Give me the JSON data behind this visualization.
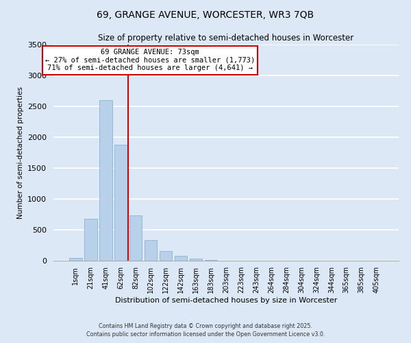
{
  "title": "69, GRANGE AVENUE, WORCESTER, WR3 7QB",
  "subtitle": "Size of property relative to semi-detached houses in Worcester",
  "xlabel": "Distribution of semi-detached houses by size in Worcester",
  "ylabel": "Number of semi-detached properties",
  "bar_labels": [
    "1sqm",
    "21sqm",
    "41sqm",
    "62sqm",
    "82sqm",
    "102sqm",
    "122sqm",
    "142sqm",
    "163sqm",
    "183sqm",
    "203sqm",
    "223sqm",
    "243sqm",
    "264sqm",
    "284sqm",
    "304sqm",
    "324sqm",
    "344sqm",
    "365sqm",
    "385sqm",
    "405sqm"
  ],
  "bar_values": [
    50,
    680,
    2600,
    1880,
    730,
    330,
    155,
    80,
    35,
    8,
    2,
    0,
    0,
    0,
    0,
    0,
    0,
    0,
    0,
    0,
    0
  ],
  "bar_color": "#b8d0ea",
  "bar_edge_color": "#90b8d8",
  "background_color": "#dce8f5",
  "grid_color": "#ffffff",
  "ylim": [
    0,
    3500
  ],
  "yticks": [
    0,
    500,
    1000,
    1500,
    2000,
    2500,
    3000,
    3500
  ],
  "property_line_color": "#cc0000",
  "annotation_title": "69 GRANGE AVENUE: 73sqm",
  "annotation_line1": "← 27% of semi-detached houses are smaller (1,773)",
  "annotation_line2": "71% of semi-detached houses are larger (4,641) →",
  "annotation_box_color": "#ffffff",
  "annotation_box_edge_color": "#cc0000",
  "footnote1": "Contains HM Land Registry data © Crown copyright and database right 2025.",
  "footnote2": "Contains public sector information licensed under the Open Government Licence v3.0."
}
